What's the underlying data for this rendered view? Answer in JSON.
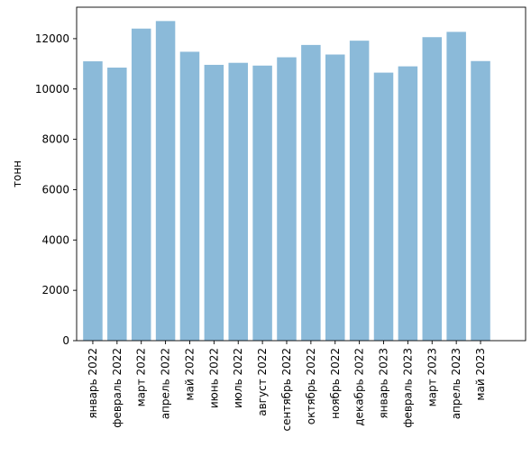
{
  "chart_data": {
    "type": "bar",
    "title": "",
    "xlabel": "",
    "ylabel": "тонн",
    "ylim": [
      0,
      13250
    ],
    "yticks": [
      0,
      2000,
      4000,
      6000,
      8000,
      10000,
      12000
    ],
    "grid": false,
    "bar_color": "#8bbad9",
    "categories": [
      "январь 2022",
      "февраль 2022",
      "март 2022",
      "апрель 2022",
      "май 2022",
      "июнь 2022",
      "июль 2022",
      "август 2022",
      "сентябрь 2022",
      "октябрь 2022",
      "ноябрь 2022",
      "декабрь 2022",
      "январь 2023",
      "февраль 2023",
      "март 2023",
      "апрель 2023",
      "май 2023"
    ],
    "values": [
      11100,
      10850,
      12400,
      12700,
      11480,
      10960,
      11040,
      10930,
      11260,
      11750,
      11370,
      11920,
      10650,
      10900,
      12060,
      12270,
      11110
    ]
  }
}
